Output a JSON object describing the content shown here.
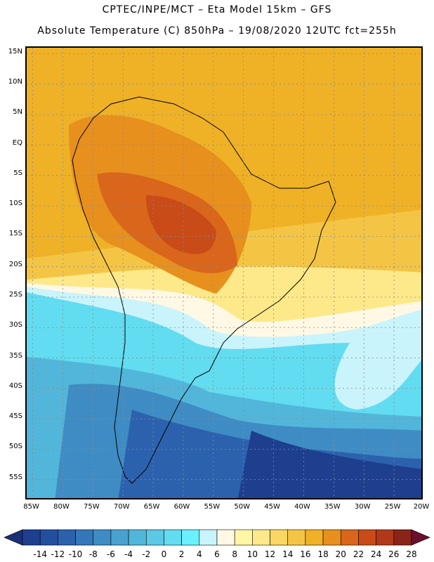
{
  "header": {
    "line1": "CPTEC/INPE/MCT –   Eta Model 15km – GFS",
    "line2": "Absolute Temperature (C) 850hPa – 19/08/2020 12UTC fct=255h"
  },
  "map": {
    "lon_range": [
      -86,
      -20
    ],
    "lat_range": [
      -58.5,
      16
    ],
    "lat_labels": [
      "15N",
      "10N",
      "5N",
      "EQ",
      "5S",
      "10S",
      "15S",
      "20S",
      "25S",
      "30S",
      "35S",
      "40S",
      "45S",
      "50S",
      "55S"
    ],
    "lat_values": [
      15,
      10,
      5,
      0,
      -5,
      -10,
      -15,
      -20,
      -25,
      -30,
      -35,
      -40,
      -45,
      -50,
      -55
    ],
    "lon_labels": [
      "85W",
      "80W",
      "75W",
      "70W",
      "65W",
      "60W",
      "55W",
      "50W",
      "45W",
      "40W",
      "35W",
      "30W",
      "25W",
      "20W"
    ],
    "lon_values": [
      -85,
      -80,
      -75,
      -70,
      -65,
      -60,
      -55,
      -50,
      -45,
      -40,
      -35,
      -30,
      -25,
      -20
    ],
    "grid": "dotted"
  },
  "colorbar": {
    "labels": [
      "-14",
      "-12",
      "-10",
      "-8",
      "-6",
      "-4",
      "-2",
      "0",
      "2",
      "4",
      "6",
      "8",
      "10",
      "12",
      "14",
      "16",
      "18",
      "20",
      "22",
      "24",
      "26",
      "28"
    ],
    "colors": [
      "#1e3f8e",
      "#23509e",
      "#2c62ad",
      "#3478b9",
      "#3f8cc4",
      "#49a1cf",
      "#52b6da",
      "#5cc9e6",
      "#62dcf0",
      "#6bf0ff",
      "#c9f4fb",
      "#fff8e4",
      "#fff6a6",
      "#fde98a",
      "#f9d762",
      "#f4c545",
      "#efb126",
      "#e7901e",
      "#d9661a",
      "#c84b18",
      "#b1391a",
      "#8a2318"
    ],
    "low_extend_color": "#1a2f78",
    "high_extend_color": "#6b0f2e"
  }
}
